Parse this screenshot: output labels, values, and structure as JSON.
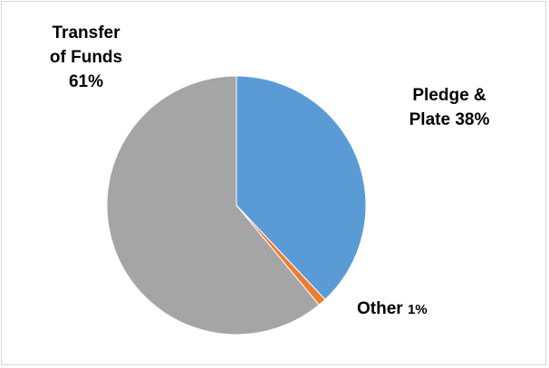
{
  "chart_data": {
    "type": "pie",
    "slices": [
      {
        "label": "Pledge & Plate",
        "value": 38,
        "color": "#5B9BD5"
      },
      {
        "label": "Other",
        "value": 1,
        "color": "#ED7D31"
      },
      {
        "label": "Transfer of Funds",
        "value": 61,
        "color": "#A5A5A5"
      }
    ],
    "data_labels": {
      "transfer_line1": "Transfer",
      "transfer_line2": "of Funds",
      "transfer_pct": "61%",
      "pledge_line1": "Pledge &",
      "pledge_line2": "Plate 38%",
      "other_name": "Other",
      "other_pct": "1%"
    },
    "legend": "none"
  }
}
